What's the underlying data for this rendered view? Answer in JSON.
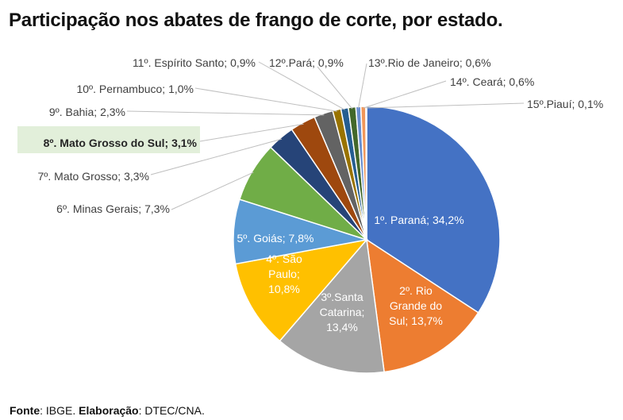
{
  "title": "Participação nos abates de frango de corte, por estado",
  "title_suffix": ".",
  "source": {
    "fonte_label": "Fonte",
    "fonte_value": ": IBGE. ",
    "elab_label": "Elaboração",
    "elab_value": ": DTEC/CNA."
  },
  "chart_data": {
    "type": "pie",
    "title": "Participação nos abates de frango de corte, por estado",
    "highlight": "8º. Mato Grosso do Sul; 3,1%",
    "slices": [
      {
        "label": "1º. Paraná; 34,2%",
        "value": 34.2,
        "color": "#4472C4"
      },
      {
        "label": "2º. Rio Grande do Sul; 13,7%",
        "value": 13.7,
        "color": "#ED7D31"
      },
      {
        "label": "3º.Santa Catarina; 13,4%",
        "value": 13.4,
        "color": "#A5A5A5"
      },
      {
        "label": "4º. São Paulo; 10,8%",
        "value": 10.8,
        "color": "#FFC000"
      },
      {
        "label": "5º. Goiás; 7,8%",
        "value": 7.8,
        "color": "#5B9BD5"
      },
      {
        "label": "6º. Minas Gerais; 7,3%",
        "value": 7.3,
        "color": "#70AD47"
      },
      {
        "label": "7º. Mato Grosso; 3,3%",
        "value": 3.3,
        "color": "#264478"
      },
      {
        "label": "8º. Mato Grosso do Sul; 3,1%",
        "value": 3.1,
        "color": "#9E480E"
      },
      {
        "label": "9º. Bahia; 2,3%",
        "value": 2.3,
        "color": "#636363"
      },
      {
        "label": "10º. Pernambuco; 1,0%",
        "value": 1.0,
        "color": "#997300"
      },
      {
        "label": "11º. Espírito Santo; 0,9%",
        "value": 0.9,
        "color": "#255E91"
      },
      {
        "label": "12º.Pará; 0,9%",
        "value": 0.9,
        "color": "#43682B"
      },
      {
        "label": "13º.Rio de Janeiro; 0,6%",
        "value": 0.6,
        "color": "#698ED0"
      },
      {
        "label": "14º. Ceará; 0,6%",
        "value": 0.6,
        "color": "#F1975A"
      },
      {
        "label": "15º.Piauí; 0,1%",
        "value": 0.1,
        "color": "#B7B7B7"
      }
    ]
  }
}
